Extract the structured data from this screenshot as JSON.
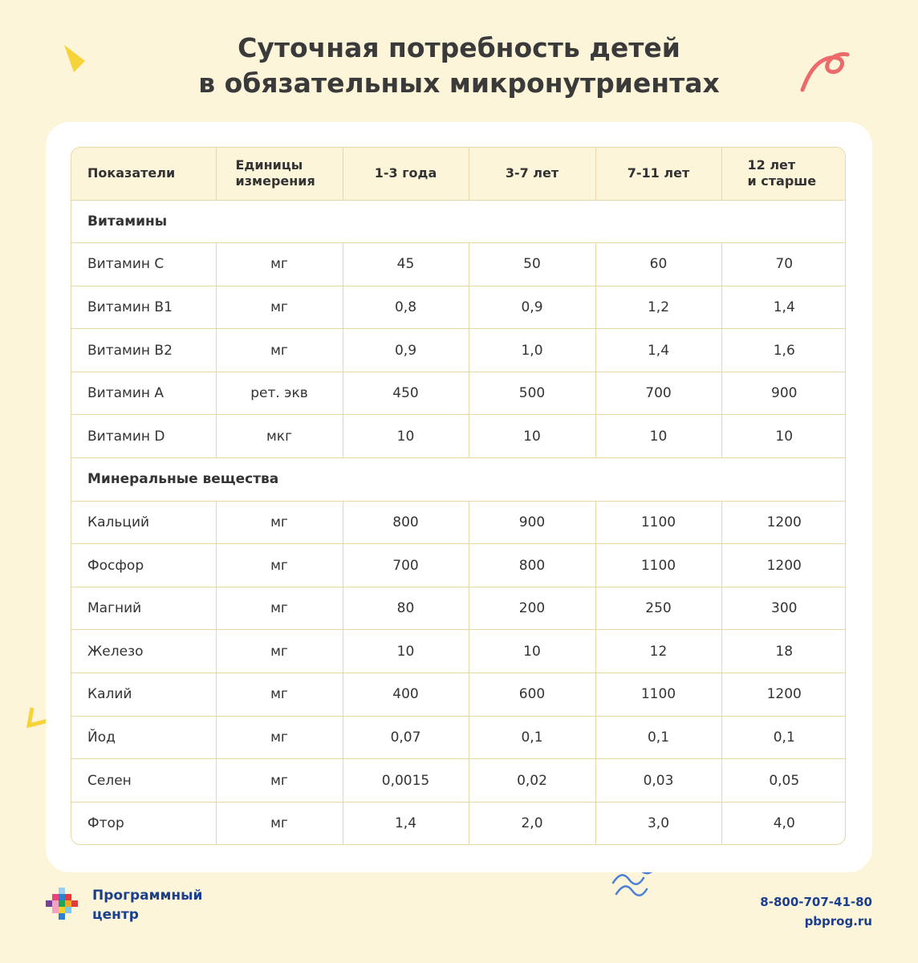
{
  "title": {
    "line1": "Суточная потребность детей",
    "line2": "в обязательных микронутриентах"
  },
  "table": {
    "headers": {
      "indicator": "Показатели",
      "units_line1": "Единицы",
      "units_line2": "измерения",
      "age1": "1-3 года",
      "age2": "3-7 лет",
      "age3": "7-11 лет",
      "age4_line1": "12 лет",
      "age4_line2": "и старше"
    },
    "sections": [
      {
        "title": "Витамины",
        "rows": [
          {
            "name": "Витамин С",
            "unit": "мг",
            "values": [
              "45",
              "50",
              "60",
              "70"
            ]
          },
          {
            "name": "Витамин В1",
            "unit": "мг",
            "values": [
              "0,8",
              "0,9",
              "1,2",
              "1,4"
            ]
          },
          {
            "name": "Витамин В2",
            "unit": "мг",
            "values": [
              "0,9",
              "1,0",
              "1,4",
              "1,6"
            ]
          },
          {
            "name": "Витамин А",
            "unit": "рет. экв",
            "values": [
              "450",
              "500",
              "700",
              "900"
            ]
          },
          {
            "name": "Витамин D",
            "unit": "мкг",
            "values": [
              "10",
              "10",
              "10",
              "10"
            ]
          }
        ]
      },
      {
        "title": "Минеральные вещества",
        "rows": [
          {
            "name": "Кальций",
            "unit": "мг",
            "values": [
              "800",
              "900",
              "1100",
              "1200"
            ]
          },
          {
            "name": "Фосфор",
            "unit": "мг",
            "values": [
              "700",
              "800",
              "1100",
              "1200"
            ]
          },
          {
            "name": "Магний",
            "unit": "мг",
            "values": [
              "80",
              "200",
              "250",
              "300"
            ]
          },
          {
            "name": "Железо",
            "unit": "мг",
            "values": [
              "10",
              "10",
              "12",
              "18"
            ]
          },
          {
            "name": "Калий",
            "unit": "мг",
            "values": [
              "400",
              "600",
              "1100",
              "1200"
            ]
          },
          {
            "name": "Йод",
            "unit": "мг",
            "values": [
              "0,07",
              "0,1",
              "0,1",
              "0,1"
            ]
          },
          {
            "name": "Селен",
            "unit": "мг",
            "values": [
              "0,0015",
              "0,02",
              "0,03",
              "0,05"
            ]
          },
          {
            "name": "Фтор",
            "unit": "мг",
            "values": [
              "1,4",
              "2,0",
              "3,0",
              "4,0"
            ]
          }
        ]
      }
    ]
  },
  "footer": {
    "brand_line1": "Программный",
    "brand_line2": "центр",
    "phone": "8-800-707-41-80",
    "site": "pbprog.ru"
  },
  "colors": {
    "background": "#fdf5da",
    "brand_blue": "#1b3f8f",
    "table_border": "#e7d8a6",
    "accent_yellow": "#f7d33a",
    "accent_red": "#ec6a6a",
    "accent_blue": "#4a7fd8"
  }
}
